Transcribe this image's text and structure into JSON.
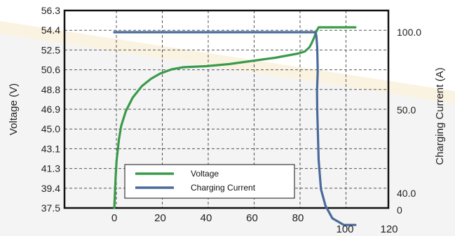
{
  "chart_data": {
    "type": "line",
    "title": "",
    "xlabel": "",
    "ylabel": "Voltage (V)",
    "y2label": "Charging Current (A)",
    "x_ticks_inner": [
      "0",
      "20",
      "40",
      "60",
      "80"
    ],
    "x_ticks_outer": [
      "100",
      "120"
    ],
    "y_ticks": [
      "56.3",
      "54.4",
      "52.5",
      "50.6",
      "48.8",
      "46.9",
      "45.0",
      "43.1",
      "41.3",
      "39.4",
      "37.5"
    ],
    "y2_ticks": [
      "100.0",
      "50.0",
      "40.0",
      "0"
    ],
    "ylim": [
      37.5,
      56.3
    ],
    "grid": true,
    "legend_position": "bottom-left",
    "series": [
      {
        "name": "Voltage",
        "color": "#3a9a4a",
        "axis": "left",
        "x": [
          0,
          0.3,
          0.6,
          1,
          2,
          3,
          5,
          8,
          12,
          16,
          20,
          25,
          30,
          40,
          50,
          60,
          70,
          80,
          83,
          85,
          86,
          87,
          88,
          89,
          95,
          105
        ],
        "y": [
          37.5,
          39.0,
          40.5,
          42.0,
          44.0,
          45.3,
          46.7,
          48.0,
          49.1,
          49.8,
          50.3,
          50.7,
          50.9,
          51.0,
          51.2,
          51.5,
          51.8,
          52.2,
          52.4,
          52.8,
          53.2,
          53.7,
          54.3,
          54.7,
          54.7,
          54.7
        ]
      },
      {
        "name": "Charging Current",
        "color": "#4a6a9a",
        "axis": "right",
        "x": [
          0,
          20,
          40,
          60,
          80,
          87.5,
          88,
          88.4,
          88.6,
          88.3,
          88.4,
          89,
          90,
          92,
          95,
          100,
          105
        ],
        "y": [
          100,
          100,
          100,
          100,
          100,
          100,
          98,
          90,
          75,
          62,
          50,
          44,
          40.5,
          38.5,
          37,
          36.2,
          36.2
        ]
      }
    ]
  }
}
